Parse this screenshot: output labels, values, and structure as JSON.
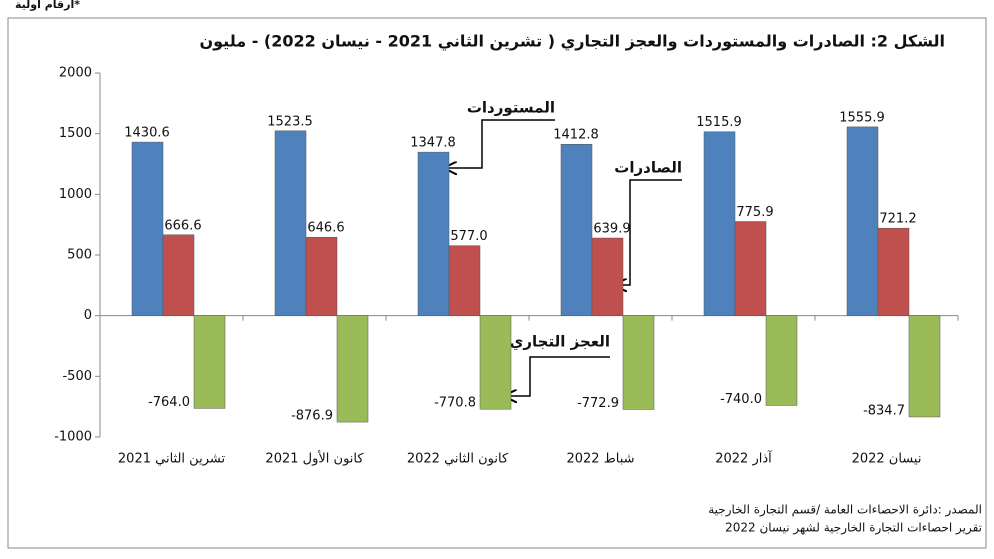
{
  "note_top": "*أرقام أولية",
  "chart_data": {
    "type": "bar",
    "title": "الشكل 2: الصادرات والمستوردات والعجز التجاري ( تشرين الثاني 2021 - نيسان 2022) - مليون",
    "categories": [
      "تشرين الثاني 2021",
      "كانون الأول 2021",
      "كانون الثاني 2022",
      "شباط 2022",
      "آذار 2022",
      "نيسان 2022"
    ],
    "series": [
      {
        "name": "المستوردات",
        "color": "#4f81bd",
        "values": [
          1430.6,
          1523.5,
          1347.8,
          1412.8,
          1515.9,
          1555.9
        ],
        "value_labels": [
          "1430.6",
          "1523.5",
          "1347.8",
          "1412.8",
          "1515.9",
          "1555.9"
        ]
      },
      {
        "name": "الصادرات",
        "color": "#c0504d",
        "values": [
          666.6,
          646.6,
          577.0,
          639.9,
          775.9,
          721.2
        ],
        "value_labels": [
          "666.6",
          "646.6",
          "577.0",
          "639.9",
          "775.9",
          "721.2"
        ]
      },
      {
        "name": "العجز التجاري",
        "color": "#9bbb59",
        "values": [
          -764.0,
          -876.9,
          -770.8,
          -772.9,
          -740.0,
          -834.7
        ],
        "value_labels": [
          "-764.0",
          "-876.9",
          "-770.8",
          "-772.9",
          "-740.0",
          "-834.7"
        ]
      }
    ],
    "ylim": [
      -1000,
      2000
    ],
    "yticks": [
      -1000,
      -500,
      0,
      500,
      1000,
      1500,
      2000
    ],
    "grid": false
  },
  "source": [
    "المصدر :دائرة الاحصاءات العامة /قسم التجارة الخارجية",
    "تقرير احصاءات التجارة الخارجية لشهر نيسان 2022"
  ]
}
